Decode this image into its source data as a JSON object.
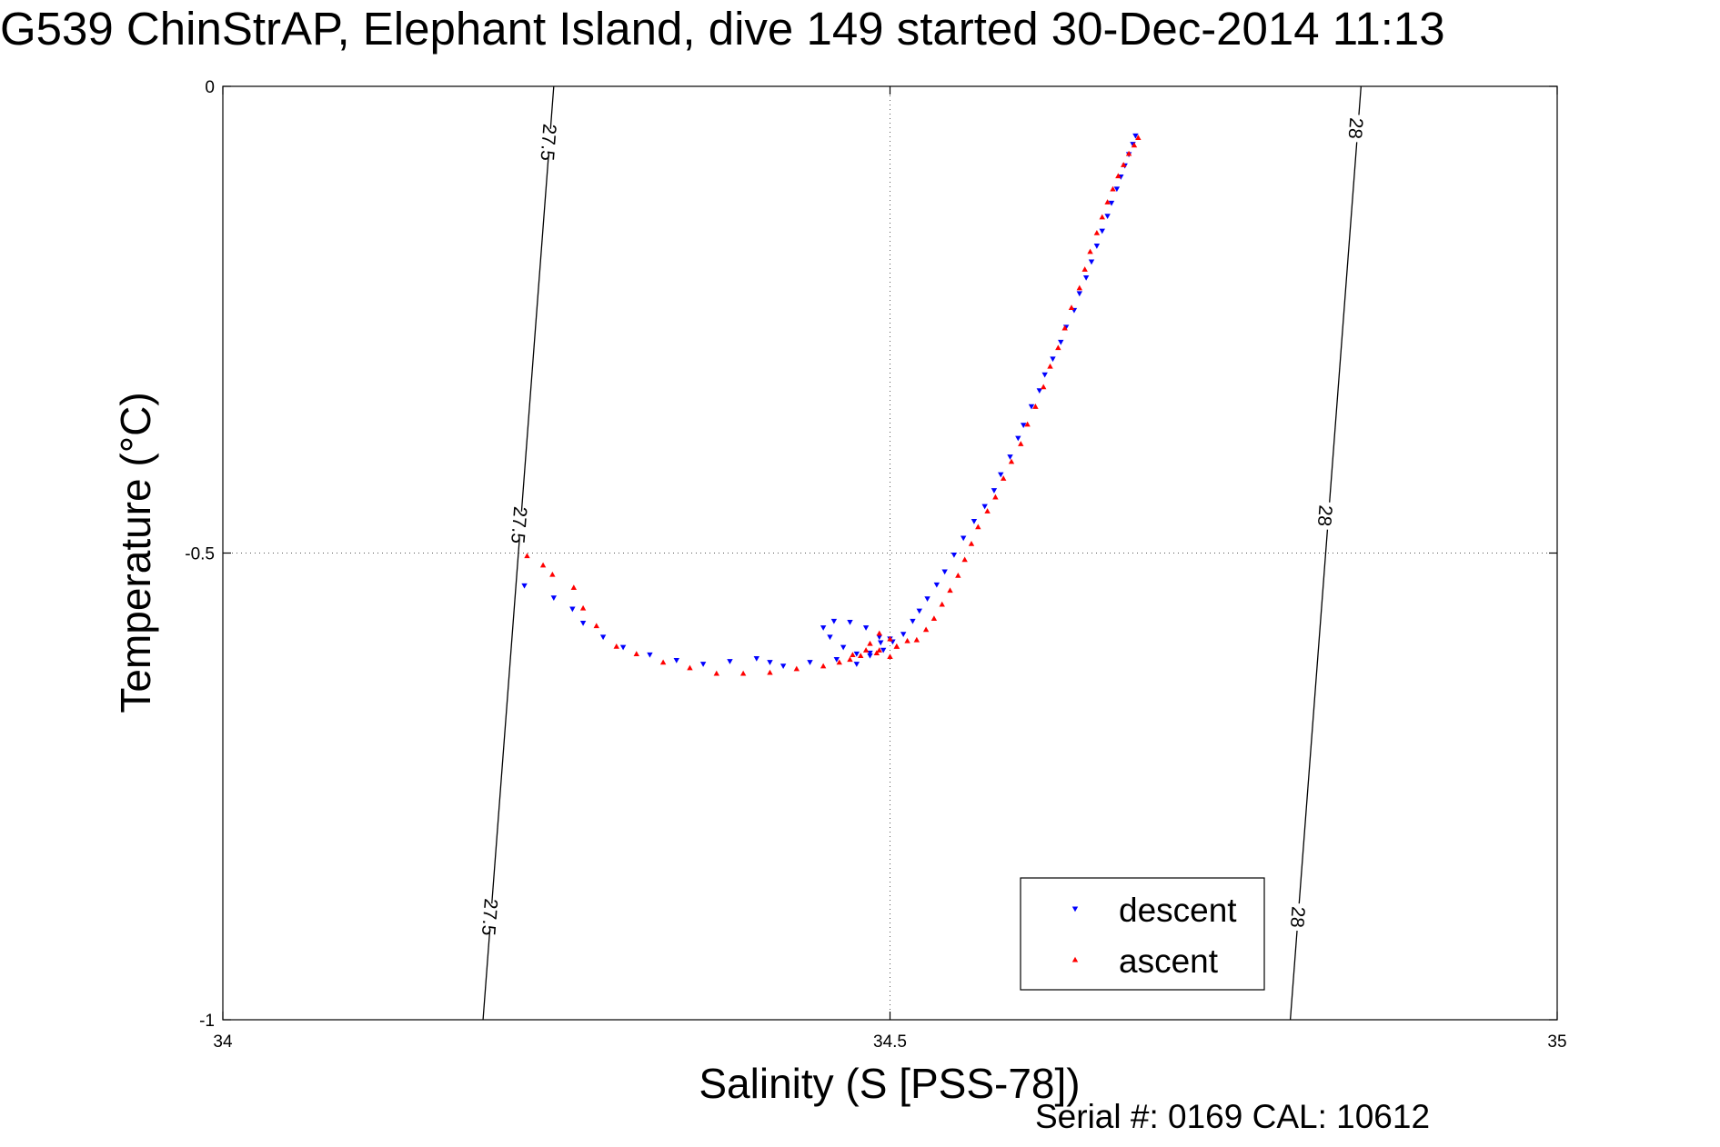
{
  "title": "G539 ChinStrAP, Elephant Island, dive 149 started 30-Dec-2014 11:13",
  "footer": "Serial #: 0169 CAL: 10612",
  "chart_data": {
    "type": "scatter",
    "xlabel": "Salinity (S [PSS-78])",
    "ylabel": "Temperature (°C)",
    "xlim": [
      34,
      35
    ],
    "ylim": [
      -1,
      0
    ],
    "xticks": [
      34,
      34.5,
      35
    ],
    "xtick_labels": [
      "34",
      "34.5",
      "35"
    ],
    "yticks": [
      0,
      -0.5,
      -1
    ],
    "ytick_labels": [
      "0",
      "-0.5",
      "-1"
    ],
    "grid": true,
    "legend_position": "bottom-right",
    "series": [
      {
        "name": "descent",
        "color": "#0000ff",
        "marker": "triangle-down",
        "points": [
          [
            34.226,
            -0.535
          ],
          [
            34.248,
            -0.548
          ],
          [
            34.262,
            -0.56
          ],
          [
            34.27,
            -0.575
          ],
          [
            34.285,
            -0.59
          ],
          [
            34.3,
            -0.601
          ],
          [
            34.32,
            -0.609
          ],
          [
            34.34,
            -0.615
          ],
          [
            34.36,
            -0.619
          ],
          [
            34.38,
            -0.616
          ],
          [
            34.4,
            -0.613
          ],
          [
            34.41,
            -0.617
          ],
          [
            34.42,
            -0.621
          ],
          [
            34.44,
            -0.617
          ],
          [
            34.46,
            -0.614
          ],
          [
            34.475,
            -0.619
          ],
          [
            34.485,
            -0.607
          ],
          [
            34.493,
            -0.596
          ],
          [
            34.5,
            -0.592
          ],
          [
            34.495,
            -0.604
          ],
          [
            34.485,
            -0.61
          ],
          [
            34.475,
            -0.608
          ],
          [
            34.465,
            -0.601
          ],
          [
            34.455,
            -0.59
          ],
          [
            34.45,
            -0.58
          ],
          [
            34.458,
            -0.573
          ],
          [
            34.47,
            -0.574
          ],
          [
            34.482,
            -0.58
          ],
          [
            34.492,
            -0.59
          ],
          [
            34.502,
            -0.595
          ],
          [
            34.51,
            -0.587
          ],
          [
            34.517,
            -0.573
          ],
          [
            34.522,
            -0.562
          ],
          [
            34.528,
            -0.549
          ],
          [
            34.535,
            -0.534
          ],
          [
            34.541,
            -0.52
          ],
          [
            34.548,
            -0.502
          ],
          [
            34.555,
            -0.484
          ],
          [
            34.563,
            -0.466
          ],
          [
            34.571,
            -0.45
          ],
          [
            34.578,
            -0.433
          ],
          [
            34.583,
            -0.416
          ],
          [
            34.59,
            -0.397
          ],
          [
            34.596,
            -0.377
          ],
          [
            34.6,
            -0.363
          ],
          [
            34.606,
            -0.343
          ],
          [
            34.612,
            -0.326
          ],
          [
            34.616,
            -0.309
          ],
          [
            34.622,
            -0.292
          ],
          [
            34.628,
            -0.274
          ],
          [
            34.632,
            -0.258
          ],
          [
            34.638,
            -0.24
          ],
          [
            34.642,
            -0.222
          ],
          [
            34.647,
            -0.205
          ],
          [
            34.651,
            -0.188
          ],
          [
            34.655,
            -0.171
          ],
          [
            34.659,
            -0.155
          ],
          [
            34.663,
            -0.139
          ],
          [
            34.666,
            -0.125
          ],
          [
            34.67,
            -0.11
          ],
          [
            34.673,
            -0.097
          ],
          [
            34.676,
            -0.085
          ],
          [
            34.679,
            -0.073
          ],
          [
            34.682,
            -0.062
          ],
          [
            34.684,
            -0.053
          ]
        ]
      },
      {
        "name": "ascent",
        "color": "#ff0000",
        "marker": "triangle-up",
        "points": [
          [
            34.228,
            -0.503
          ],
          [
            34.24,
            -0.513
          ],
          [
            34.247,
            -0.523
          ],
          [
            34.263,
            -0.537
          ],
          [
            34.27,
            -0.559
          ],
          [
            34.28,
            -0.578
          ],
          [
            34.295,
            -0.6
          ],
          [
            34.31,
            -0.608
          ],
          [
            34.33,
            -0.617
          ],
          [
            34.35,
            -0.623
          ],
          [
            34.37,
            -0.629
          ],
          [
            34.39,
            -0.629
          ],
          [
            34.41,
            -0.628
          ],
          [
            34.43,
            -0.624
          ],
          [
            34.45,
            -0.621
          ],
          [
            34.462,
            -0.617
          ],
          [
            34.472,
            -0.609
          ],
          [
            34.482,
            -0.604
          ],
          [
            34.49,
            -0.607
          ],
          [
            34.5,
            -0.611
          ],
          [
            34.505,
            -0.6
          ],
          [
            34.5,
            -0.592
          ],
          [
            34.492,
            -0.586
          ],
          [
            34.485,
            -0.597
          ],
          [
            34.478,
            -0.61
          ],
          [
            34.47,
            -0.614
          ],
          [
            34.492,
            -0.604
          ],
          [
            34.505,
            -0.6
          ],
          [
            34.513,
            -0.594
          ],
          [
            34.52,
            -0.593
          ],
          [
            34.527,
            -0.582
          ],
          [
            34.533,
            -0.57
          ],
          [
            34.539,
            -0.555
          ],
          [
            34.545,
            -0.54
          ],
          [
            34.551,
            -0.524
          ],
          [
            34.556,
            -0.507
          ],
          [
            34.561,
            -0.49
          ],
          [
            34.566,
            -0.472
          ],
          [
            34.573,
            -0.455
          ],
          [
            34.579,
            -0.44
          ],
          [
            34.585,
            -0.42
          ],
          [
            34.591,
            -0.402
          ],
          [
            34.598,
            -0.383
          ],
          [
            34.603,
            -0.362
          ],
          [
            34.609,
            -0.343
          ],
          [
            34.615,
            -0.322
          ],
          [
            34.62,
            -0.3
          ],
          [
            34.626,
            -0.28
          ],
          [
            34.631,
            -0.259
          ],
          [
            34.636,
            -0.237
          ],
          [
            34.642,
            -0.216
          ],
          [
            34.646,
            -0.196
          ],
          [
            34.65,
            -0.177
          ],
          [
            34.655,
            -0.157
          ],
          [
            34.659,
            -0.14
          ],
          [
            34.663,
            -0.124
          ],
          [
            34.667,
            -0.11
          ],
          [
            34.671,
            -0.096
          ],
          [
            34.675,
            -0.084
          ],
          [
            34.679,
            -0.072
          ],
          [
            34.683,
            -0.063
          ],
          [
            34.686,
            -0.055
          ]
        ]
      }
    ],
    "contours": [
      {
        "level": "27.5",
        "line": [
          [
            34.195,
            -1
          ],
          [
            34.248,
            0
          ]
        ],
        "labels": [
          {
            "x": 34.244,
            "y": -0.06
          },
          {
            "x": 34.222,
            "y": -0.47
          },
          {
            "x": 34.2,
            "y": -0.89
          }
        ]
      },
      {
        "level": "28",
        "line": [
          [
            34.8,
            -1
          ],
          [
            34.853,
            0
          ]
        ],
        "labels": [
          {
            "x": 34.849,
            "y": -0.045
          },
          {
            "x": 34.826,
            "y": -0.46
          },
          {
            "x": 34.8055,
            "y": -0.89
          }
        ]
      }
    ]
  }
}
